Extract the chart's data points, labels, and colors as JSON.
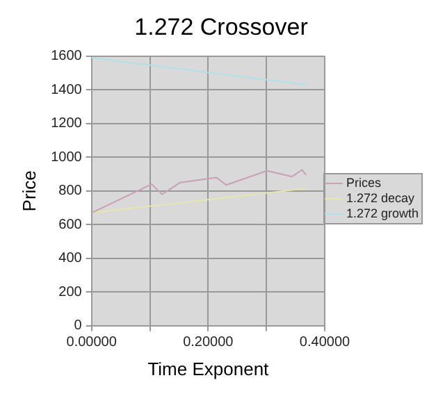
{
  "chart_data": {
    "type": "line",
    "title": "1.272 Crossover",
    "xlabel": "Time Exponent",
    "ylabel": "Price",
    "xlim": [
      0,
      0.4
    ],
    "xticks": [
      {
        "value": 0,
        "label": "0.00000"
      },
      {
        "value": 0.1,
        "label": null
      },
      {
        "value": 0.2,
        "label": "0.20000"
      },
      {
        "value": 0.3,
        "label": null
      },
      {
        "value": 0.4,
        "label": "0.40000"
      }
    ],
    "ylim": [
      0,
      1600
    ],
    "yticks": [
      0,
      200,
      400,
      600,
      800,
      1000,
      1200,
      1400,
      1600
    ],
    "grid": true,
    "legend": "right",
    "marker": "none",
    "line_style": "solid",
    "series": [
      {
        "name": "Prices",
        "color": "#c8a0b4",
        "x": [
          0,
          0.103,
          0.121,
          0.152,
          0.214,
          0.231,
          0.301,
          0.344,
          0.361,
          0.368
        ],
        "values": [
          670,
          840,
          780,
          850,
          880,
          835,
          920,
          885,
          925,
          895
        ]
      },
      {
        "name": "1.272 decay",
        "color": "#e6e6b0",
        "x": [
          0,
          0.368
        ],
        "values": [
          670,
          815
        ]
      },
      {
        "name": "1.272 growth",
        "color": "#b0e0e8",
        "x": [
          0,
          0.368
        ],
        "values": [
          1590,
          1430
        ]
      }
    ]
  }
}
